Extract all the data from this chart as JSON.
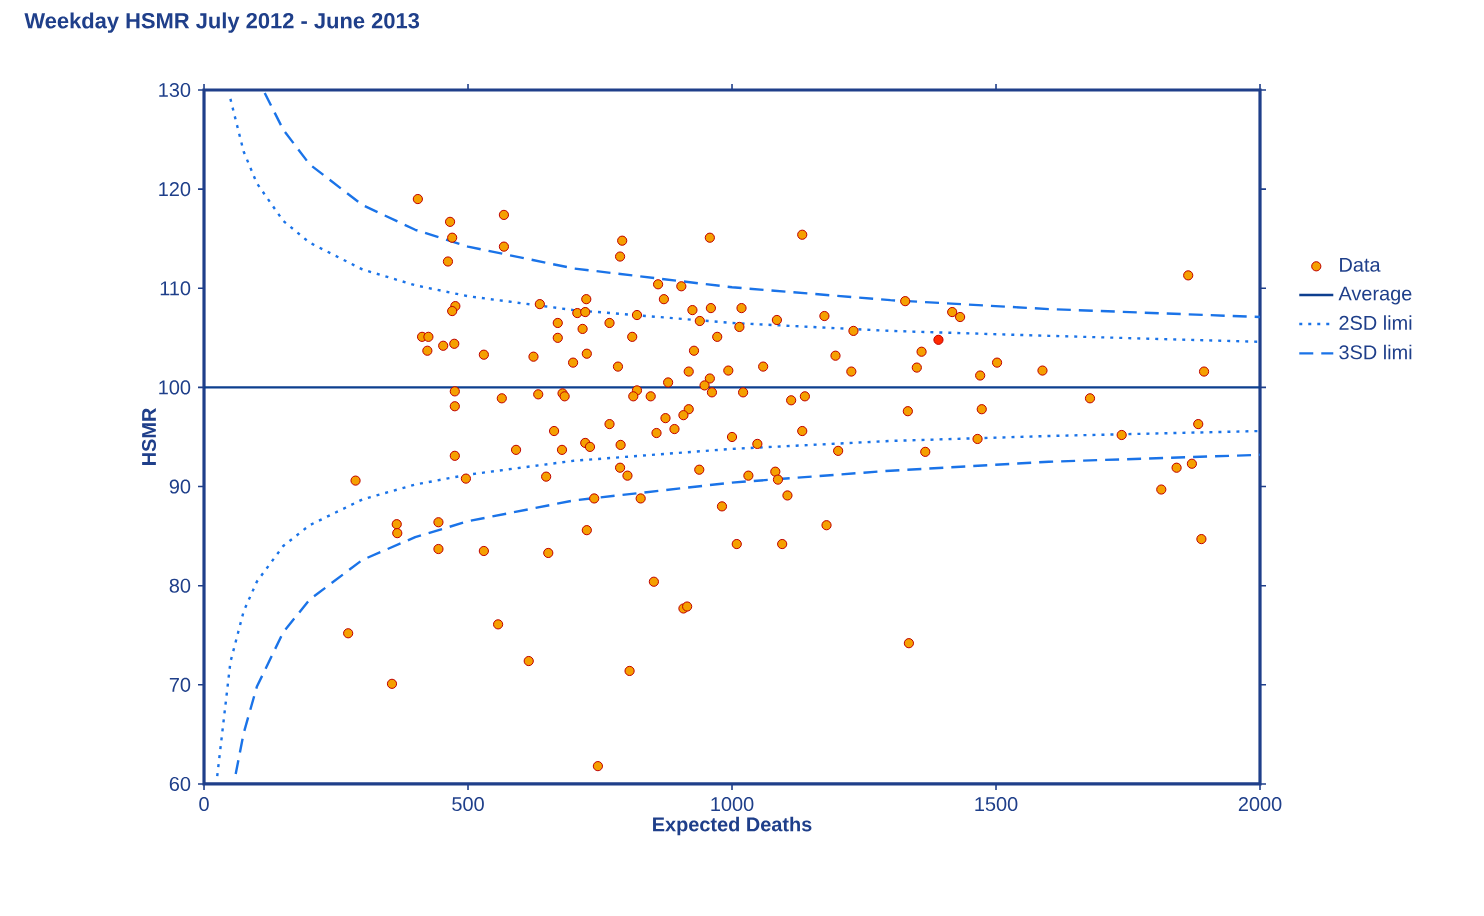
{
  "chart_data": {
    "type": "scatter",
    "title": "Weekday HSMR July 2012 - June 2013",
    "xlabel": "Expected Deaths",
    "ylabel": "HSMR",
    "xlim": [
      0,
      2000
    ],
    "ylim": [
      60,
      130
    ],
    "xticks": [
      0,
      500,
      1000,
      1500,
      2000
    ],
    "yticks": [
      60,
      70,
      80,
      90,
      100,
      110,
      120,
      130
    ],
    "legend": "right",
    "series": [
      {
        "name": "Data",
        "marker": "circle",
        "color": "#f5a000",
        "x": [
          405,
          466,
          568,
          470,
          568,
          462,
          792,
          788,
          958,
          860,
          904,
          871,
          724,
          636,
          476,
          470,
          707,
          722,
          670,
          768,
          820,
          717,
          670,
          811,
          925,
          960,
          939,
          972,
          413,
          425,
          423,
          453,
          474,
          530,
          624,
          725,
          699,
          784,
          928,
          918,
          958,
          993,
          879,
          948,
          962,
          475,
          475,
          564,
          633,
          679,
          683,
          820,
          813,
          846,
          874,
          918,
          908,
          663,
          768,
          857,
          891,
          1000,
          1133,
          1864,
          1018,
          1014,
          1085,
          1175,
          1230,
          1328,
          1417,
          1432,
          1359,
          1196,
          1059,
          1226,
          1350,
          1470,
          1502,
          1588,
          1894,
          1021,
          1112,
          1138,
          1333,
          1473,
          1678,
          1133,
          1883,
          1738,
          1465,
          475,
          591,
          678,
          722,
          731,
          789,
          287,
          496,
          648,
          788,
          802,
          938,
          739,
          827,
          981,
          365,
          366,
          444,
          444,
          530,
          725,
          652,
          1009,
          852,
          908,
          915,
          273,
          557,
          615,
          806,
          356,
          746,
          1048,
          1201,
          1366,
          1031,
          1082,
          1087,
          1105,
          1179,
          1095,
          1335,
          1842,
          1871,
          1813,
          1889
        ],
        "values": [
          119.0,
          116.7,
          117.4,
          115.1,
          114.2,
          112.7,
          114.8,
          113.2,
          115.1,
          110.4,
          110.2,
          108.9,
          108.9,
          108.4,
          108.2,
          107.7,
          107.5,
          107.6,
          106.5,
          106.5,
          107.3,
          105.9,
          105.0,
          105.1,
          107.8,
          108.0,
          106.7,
          105.1,
          105.1,
          105.1,
          103.7,
          104.2,
          104.4,
          103.3,
          103.1,
          103.4,
          102.5,
          102.1,
          103.7,
          101.6,
          100.9,
          101.7,
          100.5,
          100.2,
          99.5,
          99.6,
          98.1,
          98.9,
          99.3,
          99.4,
          99.1,
          99.7,
          99.1,
          99.1,
          96.9,
          97.8,
          97.2,
          95.6,
          96.3,
          95.4,
          95.8,
          95.0,
          115.4,
          111.3,
          108.0,
          106.1,
          106.8,
          107.2,
          105.7,
          108.7,
          107.6,
          107.1,
          103.6,
          103.2,
          102.1,
          101.6,
          102.0,
          101.2,
          102.5,
          101.7,
          101.6,
          99.5,
          98.7,
          99.1,
          97.6,
          97.8,
          98.9,
          95.6,
          96.3,
          95.2,
          94.8,
          93.1,
          93.7,
          93.7,
          94.4,
          94.0,
          94.2,
          90.6,
          90.8,
          91.0,
          91.9,
          91.1,
          91.7,
          88.8,
          88.8,
          88.0,
          86.2,
          85.3,
          86.4,
          83.7,
          83.5,
          85.6,
          83.3,
          84.2,
          80.4,
          77.7,
          77.9,
          75.2,
          76.1,
          72.4,
          71.4,
          70.1,
          61.8,
          94.3,
          93.6,
          93.5,
          91.1,
          91.5,
          90.7,
          89.1,
          86.1,
          84.2,
          74.2,
          91.9,
          92.3,
          89.7,
          84.7
        ]
      },
      {
        "marker": "circle",
        "color": "#ff2a00",
        "x": [
          1391
        ],
        "values": [
          104.8
        ]
      },
      {
        "name": "Average",
        "type": "line",
        "marker": "none",
        "line_style": "solid",
        "color": "#0d3f8f",
        "x": [
          0,
          2000
        ],
        "values": [
          100,
          100
        ]
      },
      {
        "name": "2SD limi",
        "type": "line",
        "marker": "none",
        "line_style": "dotted",
        "color": "#1a73e8",
        "x": [
          50,
          75,
          100,
          150,
          200,
          300,
          400,
          500,
          700,
          1000,
          1300,
          1600,
          2000
        ],
        "values": [
          129.1,
          123.8,
          120.6,
          116.8,
          114.6,
          111.9,
          110.3,
          109.2,
          107.8,
          106.5,
          105.7,
          105.2,
          104.6
        ]
      },
      {
        "type": "line",
        "marker": "none",
        "line_style": "dotted",
        "color": "#1a73e8",
        "x": [
          25,
          50,
          75,
          100,
          150,
          200,
          300,
          400,
          500,
          700,
          1000,
          1300,
          1600,
          2000
        ],
        "values": [
          60.8,
          72.3,
          77.4,
          80.4,
          84.0,
          86.1,
          88.7,
          90.2,
          91.2,
          92.6,
          93.8,
          94.6,
          95.1,
          95.6
        ]
      },
      {
        "name": "3SD limi",
        "type": "line",
        "marker": "none",
        "line_style": "dashed",
        "color": "#1a73e8",
        "x": [
          115,
          150,
          200,
          300,
          400,
          500,
          700,
          1000,
          1300,
          1600,
          2000
        ],
        "values": [
          129.7,
          126.0,
          122.5,
          118.4,
          115.9,
          114.2,
          112.0,
          110.1,
          108.8,
          107.9,
          107.1
        ]
      },
      {
        "type": "line",
        "marker": "none",
        "line_style": "dashed",
        "color": "#1a73e8",
        "x": [
          60,
          75,
          100,
          150,
          200,
          300,
          400,
          500,
          700,
          1000,
          1300,
          1600,
          2000
        ],
        "values": [
          61.0,
          65.1,
          69.8,
          75.3,
          78.6,
          82.6,
          84.9,
          86.5,
          88.6,
          90.4,
          91.6,
          92.5,
          93.2
        ]
      }
    ]
  }
}
